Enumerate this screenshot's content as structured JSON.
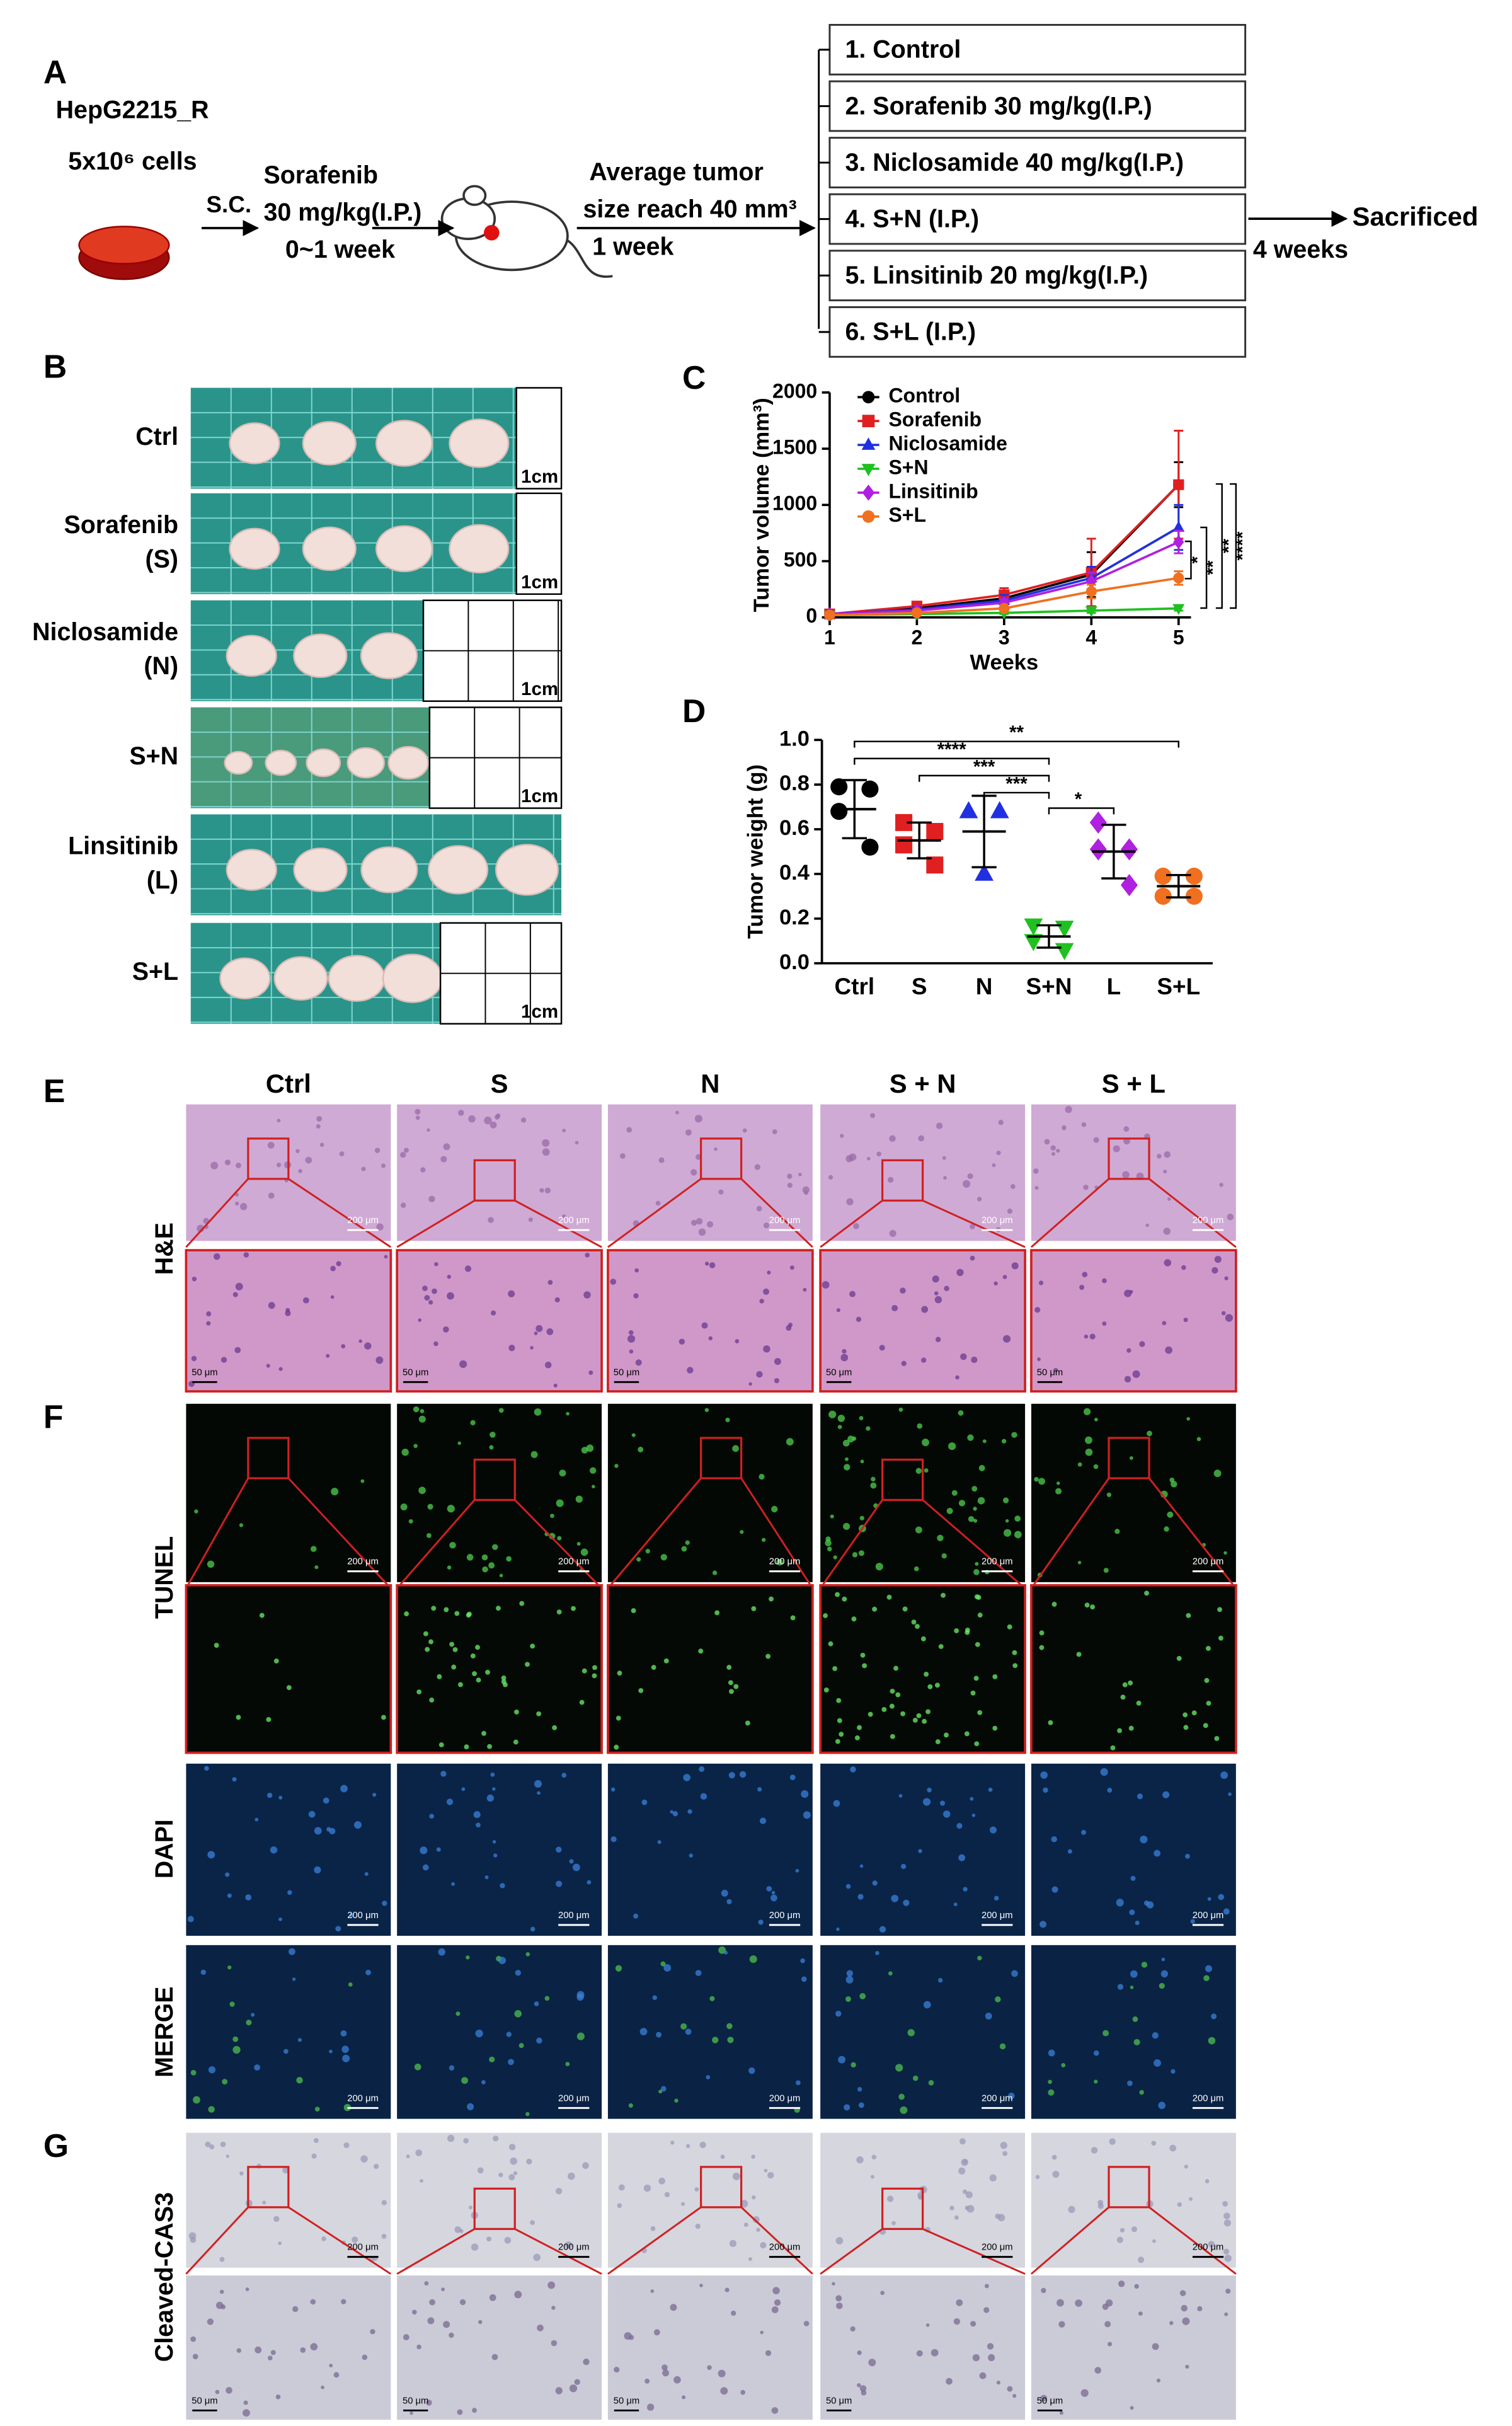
{
  "panel_a": {
    "label": "A",
    "cell_line": "HepG2215_R",
    "cells": "5x10⁶ cells",
    "injection": "S.C.",
    "pretreatment": [
      "Sorafenib",
      "30 mg/kg(I.P.)",
      "0~1 week"
    ],
    "tumor": [
      "Average tumor",
      "size reach 40 mm³",
      "1 week"
    ],
    "groups": [
      "1. Control",
      "2. Sorafenib 30 mg/kg(I.P.)",
      "3. Niclosamide 40 mg/kg(I.P.)",
      "4. S+N (I.P.)",
      "5. Linsitinib 20 mg/kg(I.P.)",
      "6. S+L (I.P.)"
    ],
    "end": "Sacrificed",
    "duration": "4 weeks"
  },
  "panel_b": {
    "label": "B",
    "rows": [
      {
        "label": [
          "Ctrl"
        ]
      },
      {
        "label": [
          "Sorafenib",
          "(S)"
        ]
      },
      {
        "label": [
          "Niclosamide",
          "(N)"
        ]
      },
      {
        "label": [
          "S+N"
        ]
      },
      {
        "label": [
          "Linsitinib",
          "(L)"
        ]
      },
      {
        "label": [
          "S+L"
        ]
      }
    ],
    "scale": "1cm"
  },
  "chart_data": [
    {
      "type": "line",
      "label": "C",
      "xlabel": "Weeks",
      "ylabel": "Tumor volume (mm³)",
      "x": [
        1,
        2,
        3,
        4,
        5
      ],
      "xlim": [
        1,
        5
      ],
      "xticks": [
        1,
        2,
        3,
        4,
        5
      ],
      "ylim": [
        0,
        2000
      ],
      "yticks": [
        0,
        500,
        1000,
        1500,
        2000
      ],
      "series": [
        {
          "name": "Control",
          "color": "#000000",
          "marker": "circle",
          "values": [
            30,
            80,
            170,
            380,
            1180
          ],
          "errors": [
            10,
            20,
            50,
            200,
            200
          ]
        },
        {
          "name": "Sorafenib",
          "color": "#e02020",
          "marker": "square",
          "values": [
            30,
            100,
            200,
            400,
            1180
          ],
          "errors": [
            10,
            20,
            60,
            300,
            480
          ]
        },
        {
          "name": "Niclosamide",
          "color": "#2030e0",
          "marker": "triangle",
          "values": [
            30,
            70,
            150,
            350,
            800
          ],
          "errors": [
            10,
            20,
            50,
            100,
            200
          ]
        },
        {
          "name": "S+N",
          "color": "#20c020",
          "marker": "triangle-down",
          "values": [
            20,
            30,
            40,
            60,
            80
          ],
          "errors": [
            5,
            5,
            10,
            20,
            20
          ]
        },
        {
          "name": "Linsitinib",
          "color": "#b020e0",
          "marker": "diamond",
          "values": [
            30,
            60,
            130,
            320,
            670
          ],
          "errors": [
            5,
            10,
            30,
            80,
            100
          ]
        },
        {
          "name": "S+L",
          "color": "#f07020",
          "marker": "circle",
          "values": [
            20,
            40,
            80,
            230,
            350
          ],
          "errors": [
            5,
            10,
            20,
            60,
            60
          ]
        }
      ],
      "annotations": [
        "*",
        "**",
        "**",
        "****"
      ]
    },
    {
      "type": "scatter",
      "label": "D",
      "ylabel": "Tumor weight (g)",
      "categories": [
        "Ctrl",
        "S",
        "N",
        "S+N",
        "L",
        "S+L"
      ],
      "ylim": [
        0,
        1.0
      ],
      "yticks": [
        {
          "value": 0,
          "label": "0.0"
        },
        0.2,
        0.4,
        0.6,
        0.8,
        {
          "value": 1,
          "label": "1.0"
        }
      ],
      "groups": [
        {
          "color": "#000000",
          "marker": "circle",
          "values": [
            0.79,
            0.78,
            0.68,
            0.52
          ],
          "mean": 0.69,
          "sd": 0.13
        },
        {
          "color": "#e02020",
          "marker": "square",
          "values": [
            0.63,
            0.59,
            0.53,
            0.44
          ],
          "mean": 0.55,
          "sd": 0.08
        },
        {
          "color": "#2030e0",
          "marker": "triangle",
          "values": [
            0.68,
            0.68,
            0.4
          ],
          "mean": 0.59,
          "sd": 0.16
        },
        {
          "color": "#20c020",
          "marker": "triangle-down",
          "values": [
            0.17,
            0.16,
            0.1,
            0.06
          ],
          "mean": 0.12,
          "sd": 0.05
        },
        {
          "color": "#b020e0",
          "marker": "diamond",
          "values": [
            0.63,
            0.51,
            0.51,
            0.35
          ],
          "mean": 0.5,
          "sd": 0.12
        },
        {
          "color": "#f07020",
          "marker": "circle",
          "values": [
            0.39,
            0.39,
            0.3,
            0.3
          ],
          "mean": 0.345,
          "sd": 0.05
        }
      ],
      "annotations": [
        "**",
        "****",
        "***",
        "***",
        "*"
      ]
    }
  ],
  "histology": {
    "columns": [
      "Ctrl",
      "S",
      "N",
      "S + N",
      "S + L"
    ],
    "panels": [
      {
        "label": "E",
        "stains": [
          "H&E"
        ]
      },
      {
        "label": "F",
        "stains": [
          "TUNEL",
          "DAPI",
          "MERGE"
        ]
      },
      {
        "label": "G",
        "stains": [
          "Cleaved-CAS3"
        ]
      }
    ],
    "scale_bars": [
      "200 μm",
      "50 μm"
    ]
  }
}
